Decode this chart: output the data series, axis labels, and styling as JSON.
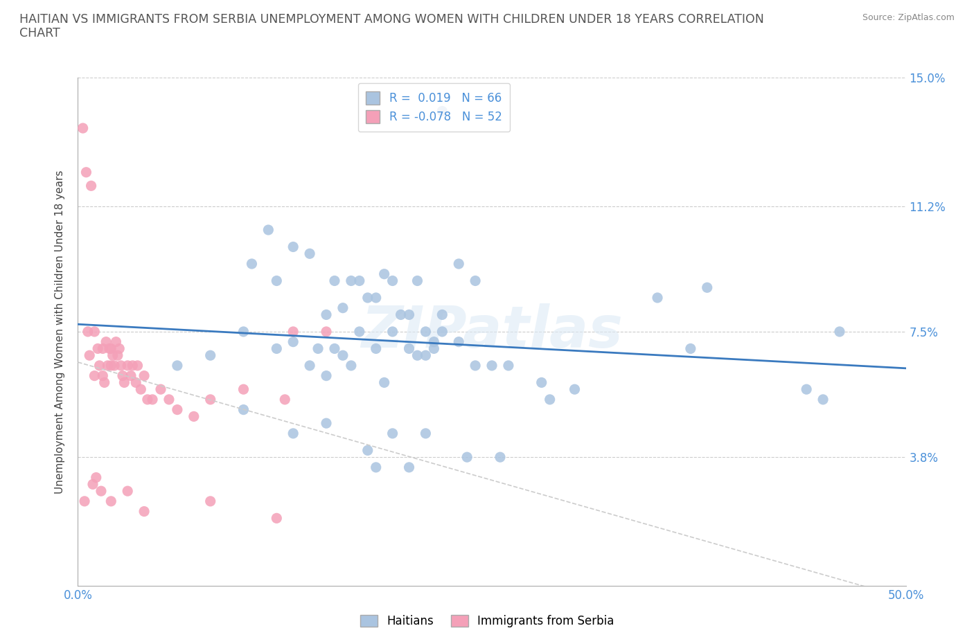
{
  "title": "HAITIAN VS IMMIGRANTS FROM SERBIA UNEMPLOYMENT AMONG WOMEN WITH CHILDREN UNDER 18 YEARS CORRELATION\nCHART",
  "source": "Source: ZipAtlas.com",
  "ylabel": "Unemployment Among Women with Children Under 18 years",
  "xlim": [
    0,
    50
  ],
  "ylim": [
    0,
    15
  ],
  "yticks": [
    0,
    3.8,
    7.5,
    11.2,
    15.0
  ],
  "xticks": [
    0,
    10,
    20,
    30,
    40,
    50
  ],
  "xtick_labels": [
    "0.0%",
    "",
    "",
    "",
    "",
    "50.0%"
  ],
  "ytick_labels_right": [
    "",
    "3.8%",
    "7.5%",
    "11.2%",
    "15.0%"
  ],
  "haitians_color": "#aac4e0",
  "serbia_color": "#f4a0b8",
  "trend_haiti_color": "#3a7abf",
  "trend_serbia_color": "#c8b0b8",
  "label_color": "#4a90d9",
  "R_haiti": "0.019",
  "N_haiti": "66",
  "R_serbia": "-0.078",
  "N_serbia": "52",
  "watermark": "ZIPatlas",
  "haitians_x": [
    6.0,
    8.0,
    10.0,
    10.5,
    11.5,
    12.0,
    13.0,
    14.0,
    14.5,
    15.0,
    15.5,
    16.0,
    16.5,
    17.0,
    17.5,
    18.0,
    18.5,
    19.0,
    19.5,
    20.0,
    20.5,
    21.0,
    21.5,
    22.0,
    23.0,
    24.0,
    25.0,
    26.0,
    18.0,
    19.0,
    20.0,
    14.0,
    15.0,
    16.0,
    22.0,
    17.0,
    13.0,
    12.0,
    21.0,
    23.0,
    24.0,
    18.5,
    20.5,
    15.5,
    16.5,
    21.5,
    28.0,
    28.5,
    30.0,
    35.0,
    37.0,
    44.0,
    45.0,
    46.0,
    38.0,
    22.0,
    13.0,
    15.0,
    10.0,
    19.0,
    21.0,
    17.5,
    18.0,
    20.0,
    23.5,
    25.5
  ],
  "haitians_y": [
    6.5,
    6.8,
    7.5,
    9.5,
    10.5,
    9.0,
    10.0,
    9.8,
    7.0,
    8.0,
    9.0,
    8.2,
    9.0,
    9.0,
    8.5,
    8.5,
    9.2,
    9.0,
    8.0,
    8.0,
    9.0,
    7.5,
    7.2,
    7.5,
    9.5,
    9.0,
    6.5,
    6.5,
    7.0,
    7.5,
    7.0,
    6.5,
    6.2,
    6.8,
    8.0,
    7.5,
    7.2,
    7.0,
    6.8,
    7.2,
    6.5,
    6.0,
    6.8,
    7.0,
    6.5,
    7.0,
    6.0,
    5.5,
    5.8,
    8.5,
    7.0,
    5.8,
    5.5,
    7.5,
    8.8,
    14.0,
    4.5,
    4.8,
    5.2,
    4.5,
    4.5,
    4.0,
    3.5,
    3.5,
    3.8,
    3.8
  ],
  "serbia_x": [
    0.3,
    0.5,
    0.6,
    0.7,
    0.8,
    1.0,
    1.0,
    1.2,
    1.3,
    1.5,
    1.5,
    1.6,
    1.7,
    1.8,
    1.9,
    2.0,
    2.0,
    2.1,
    2.2,
    2.3,
    2.4,
    2.5,
    2.6,
    2.7,
    2.8,
    3.0,
    3.2,
    3.3,
    3.5,
    3.6,
    3.8,
    4.0,
    4.2,
    4.5,
    5.0,
    5.5,
    6.0,
    7.0,
    8.0,
    10.0,
    12.5,
    15.0,
    0.4,
    0.9,
    1.1,
    1.4,
    2.0,
    3.0,
    4.0,
    8.0,
    12.0,
    13.0
  ],
  "serbia_y": [
    13.5,
    12.2,
    7.5,
    6.8,
    11.8,
    7.5,
    6.2,
    7.0,
    6.5,
    7.0,
    6.2,
    6.0,
    7.2,
    6.5,
    7.0,
    7.0,
    6.5,
    6.8,
    6.5,
    7.2,
    6.8,
    7.0,
    6.5,
    6.2,
    6.0,
    6.5,
    6.2,
    6.5,
    6.0,
    6.5,
    5.8,
    6.2,
    5.5,
    5.5,
    5.8,
    5.5,
    5.2,
    5.0,
    5.5,
    5.8,
    5.5,
    7.5,
    2.5,
    3.0,
    3.2,
    2.8,
    2.5,
    2.8,
    2.2,
    2.5,
    2.0,
    7.5
  ]
}
